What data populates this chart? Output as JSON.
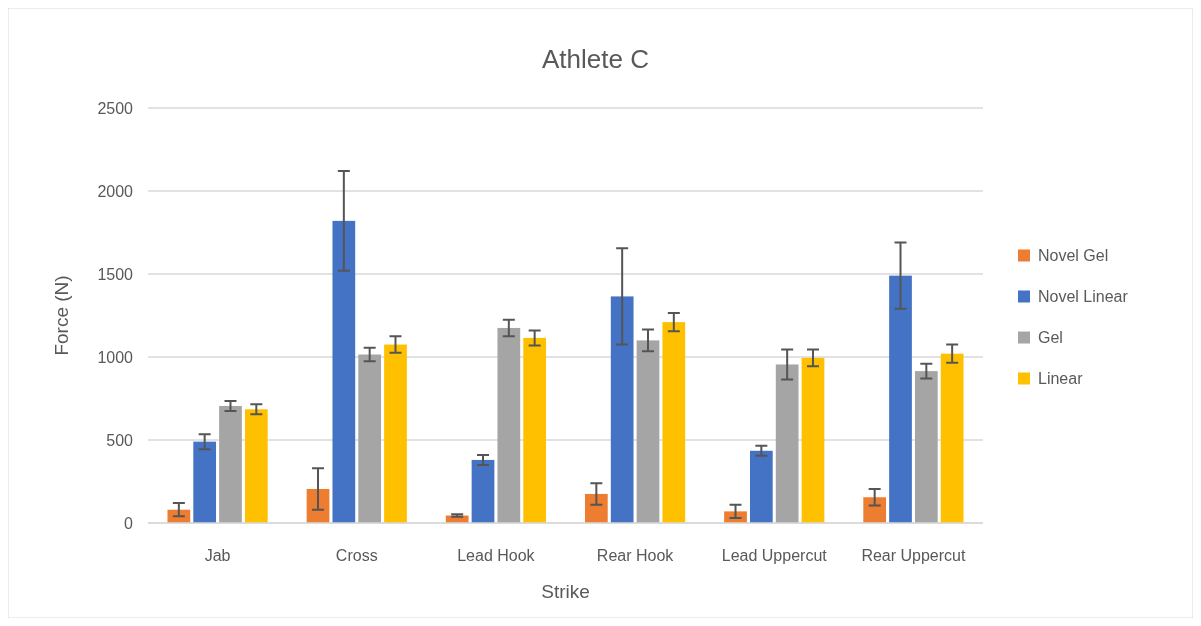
{
  "chart_data": {
    "type": "bar",
    "title": "Athlete C",
    "xlabel": "Strike",
    "ylabel": "Force (N)",
    "categories": [
      "Jab",
      "Cross",
      "Lead Hook",
      "Rear Hook",
      "Lead Uppercut",
      "Rear Uppercut"
    ],
    "series": [
      {
        "name": "Novel Gel",
        "color": "#ed7d31",
        "values": [
          80,
          205,
          45,
          175,
          70,
          155
        ],
        "errors": [
          40,
          125,
          8,
          65,
          40,
          50
        ]
      },
      {
        "name": "Novel Linear",
        "color": "#4472c4",
        "values": [
          490,
          1820,
          380,
          1365,
          435,
          1490
        ],
        "errors": [
          45,
          300,
          30,
          290,
          30,
          200
        ]
      },
      {
        "name": "Gel",
        "color": "#a5a5a5",
        "values": [
          705,
          1015,
          1175,
          1100,
          955,
          915
        ],
        "errors": [
          30,
          40,
          50,
          65,
          90,
          45
        ]
      },
      {
        "name": "Linear",
        "color": "#ffc000",
        "values": [
          685,
          1075,
          1115,
          1210,
          995,
          1020
        ],
        "errors": [
          30,
          50,
          45,
          55,
          50,
          55
        ]
      }
    ],
    "ylim": [
      0,
      2500
    ],
    "yticks": [
      0,
      500,
      1000,
      1500,
      2000,
      2500
    ],
    "grid": "y",
    "legend": "right"
  }
}
